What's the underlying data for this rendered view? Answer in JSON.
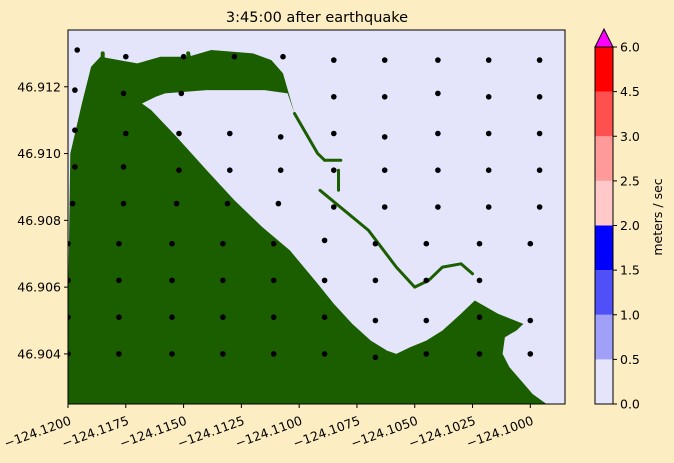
{
  "chart_data": {
    "type": "heatmap",
    "title": "3:45:00 after earthquake",
    "xlabel": "",
    "ylabel": "",
    "xlim": [
      -124.12,
      -124.0985
    ],
    "ylim": [
      46.9025,
      46.9137
    ],
    "x_ticks": [
      -124.12,
      -124.1175,
      -124.115,
      -124.1125,
      -124.11,
      -124.1075,
      -124.105,
      -124.1025,
      -124.1
    ],
    "x_tick_labels": [
      "−124.1200",
      "−124.1175",
      "−124.1150",
      "−124.1125",
      "−124.1100",
      "−124.1075",
      "−124.1050",
      "−124.1025",
      "−124.1000"
    ],
    "y_ticks": [
      46.904,
      46.906,
      46.908,
      46.91,
      46.912
    ],
    "y_tick_labels": [
      "46.904",
      "46.906",
      "46.908",
      "46.910",
      "46.912"
    ],
    "background_color": "#e4e4fb",
    "land_color": "#1a5e00",
    "marker_color": "#000000",
    "grid": false,
    "colorbar": {
      "label": "meters / sec",
      "ticks": [
        0.0,
        0.5,
        1.0,
        1.5,
        2.0,
        2.5,
        3.0,
        4.5,
        6.0
      ],
      "tick_labels": [
        "0.0",
        "0.5",
        "1.0",
        "1.5",
        "2.0",
        "2.5",
        "3.0",
        "4.5",
        "6.0"
      ],
      "colors": [
        "#e4e4fb",
        "#a0a0f8",
        "#5050f8",
        "#0000ff",
        "#ffc9c9",
        "#ff9a9a",
        "#ff5050",
        "#ff0000"
      ],
      "extend_color": "#ff00ff"
    },
    "land_polygon": [
      [
        -124.12,
        46.9025
      ],
      [
        -124.12,
        46.9053
      ],
      [
        -124.1199,
        46.91
      ],
      [
        -124.1194,
        46.9115
      ],
      [
        -124.119,
        46.9126
      ],
      [
        -124.1186,
        46.9129
      ],
      [
        -124.117,
        46.9127
      ],
      [
        -124.116,
        46.9129
      ],
      [
        -124.1148,
        46.9129
      ],
      [
        -124.1138,
        46.9131
      ],
      [
        -124.112,
        46.913
      ],
      [
        -124.1112,
        46.9128
      ],
      [
        -124.1107,
        46.9124
      ],
      [
        -124.1102,
        46.9112
      ],
      [
        -124.1105,
        46.9118
      ],
      [
        -124.1115,
        46.9119
      ],
      [
        -124.114,
        46.9119
      ],
      [
        -124.1158,
        46.9118
      ],
      [
        -124.1162,
        46.9117
      ],
      [
        -124.1168,
        46.9115
      ],
      [
        -124.1164,
        46.9113
      ],
      [
        -124.1153,
        46.9105
      ],
      [
        -124.114,
        46.9095
      ],
      [
        -124.1128,
        46.9086
      ],
      [
        -124.1116,
        46.9078
      ],
      [
        -124.1104,
        46.9071
      ],
      [
        -124.1092,
        46.9061
      ],
      [
        -124.1085,
        46.9055
      ],
      [
        -124.1077,
        46.9049
      ],
      [
        -124.1069,
        46.9044
      ],
      [
        -124.1062,
        46.9041
      ],
      [
        -124.1058,
        46.904
      ],
      [
        -124.1052,
        46.9042
      ],
      [
        -124.1045,
        46.9044
      ],
      [
        -124.1038,
        46.9047
      ],
      [
        -124.103,
        46.9052
      ],
      [
        -124.1024,
        46.9056
      ],
      [
        -124.1014,
        46.9052
      ],
      [
        -124.1003,
        46.9049
      ],
      [
        -124.1006,
        46.9047
      ],
      [
        -124.1011,
        46.9045
      ],
      [
        -124.1012,
        46.904
      ],
      [
        -124.1009,
        46.9036
      ],
      [
        -124.1004,
        46.9032
      ],
      [
        -124.0999,
        46.9028
      ],
      [
        -124.0993,
        46.9025
      ]
    ],
    "channel_lines": [
      [
        [
          -124.1102,
          46.9112
        ],
        [
          -124.1092,
          46.91
        ],
        [
          -124.1089,
          46.9098
        ]
      ],
      [
        [
          -124.1089,
          46.9098
        ],
        [
          -124.1082,
          46.9098
        ]
      ],
      [
        [
          -124.1091,
          46.9089
        ],
        [
          -124.107,
          46.9077
        ],
        [
          -124.1058,
          46.9066
        ],
        [
          -124.105,
          46.906
        ],
        [
          -124.1044,
          46.9062
        ],
        [
          -124.1038,
          46.9066
        ],
        [
          -124.103,
          46.9067
        ],
        [
          -124.1025,
          46.9064
        ]
      ],
      [
        [
          -124.1083,
          46.9095
        ],
        [
          -124.1083,
          46.9089
        ]
      ]
    ],
    "jetty_lines": [
      [
        [
          -124.1185,
          46.913
        ],
        [
          -124.1185,
          46.9124
        ]
      ],
      [
        [
          -124.1148,
          46.913
        ],
        [
          -124.1147,
          46.9126
        ]
      ]
    ],
    "marker_points": [
      [
        -124.1196,
        46.9131
      ],
      [
        -124.1175,
        46.9129
      ],
      [
        -124.115,
        46.9129
      ],
      [
        -124.1128,
        46.9129
      ],
      [
        -124.1107,
        46.9129
      ],
      [
        -124.1085,
        46.9128
      ],
      [
        -124.1063,
        46.9128
      ],
      [
        -124.104,
        46.9128
      ],
      [
        -124.1018,
        46.9128
      ],
      [
        -124.0996,
        46.9128
      ],
      [
        -124.1197,
        46.9119
      ],
      [
        -124.1176,
        46.9118
      ],
      [
        -124.1151,
        46.9118
      ],
      [
        -124.1085,
        46.9117
      ],
      [
        -124.1063,
        46.9117
      ],
      [
        -124.104,
        46.9118
      ],
      [
        -124.1018,
        46.9117
      ],
      [
        -124.0996,
        46.9117
      ],
      [
        -124.1197,
        46.9107
      ],
      [
        -124.1175,
        46.9106
      ],
      [
        -124.1152,
        46.9106
      ],
      [
        -124.113,
        46.9106
      ],
      [
        -124.1108,
        46.9105
      ],
      [
        -124.1085,
        46.9106
      ],
      [
        -124.1063,
        46.9105
      ],
      [
        -124.104,
        46.9106
      ],
      [
        -124.1018,
        46.9106
      ],
      [
        -124.0996,
        46.9106
      ],
      [
        -124.1197,
        46.9096
      ],
      [
        -124.1176,
        46.9096
      ],
      [
        -124.1152,
        46.9095
      ],
      [
        -124.113,
        46.9095
      ],
      [
        -124.1108,
        46.9095
      ],
      [
        -124.1085,
        46.9095
      ],
      [
        -124.1063,
        46.9095
      ],
      [
        -124.104,
        46.9095
      ],
      [
        -124.1018,
        46.9095
      ],
      [
        -124.0996,
        46.9095
      ],
      [
        -124.1198,
        46.9085
      ],
      [
        -124.1176,
        46.9085
      ],
      [
        -124.1153,
        46.9085
      ],
      [
        -124.1131,
        46.9085
      ],
      [
        -124.1109,
        46.9085
      ],
      [
        -124.1085,
        46.9084
      ],
      [
        -124.1063,
        46.9084
      ],
      [
        -124.104,
        46.9084
      ],
      [
        -124.1018,
        46.9084
      ],
      [
        -124.0996,
        46.9084
      ],
      [
        -124.12,
        46.9073
      ],
      [
        -124.1178,
        46.9073
      ],
      [
        -124.1155,
        46.9073
      ],
      [
        -124.1133,
        46.9073
      ],
      [
        -124.1111,
        46.9073
      ],
      [
        -124.1089,
        46.9074
      ],
      [
        -124.1067,
        46.9073
      ],
      [
        -124.1045,
        46.9073
      ],
      [
        -124.1022,
        46.9073
      ],
      [
        -124.1,
        46.9073
      ],
      [
        -124.12,
        46.9062
      ],
      [
        -124.1178,
        46.9062
      ],
      [
        -124.1155,
        46.9062
      ],
      [
        -124.1133,
        46.9062
      ],
      [
        -124.1111,
        46.9062
      ],
      [
        -124.1089,
        46.9062
      ],
      [
        -124.1067,
        46.9062
      ],
      [
        -124.1045,
        46.9062
      ],
      [
        -124.1022,
        46.9062
      ],
      [
        -124.12,
        46.9051
      ],
      [
        -124.1178,
        46.9051
      ],
      [
        -124.1155,
        46.9051
      ],
      [
        -124.1133,
        46.9051
      ],
      [
        -124.1111,
        46.9051
      ],
      [
        -124.1089,
        46.9051
      ],
      [
        -124.1067,
        46.905
      ],
      [
        -124.1045,
        46.905
      ],
      [
        -124.1022,
        46.9051
      ],
      [
        -124.1,
        46.905
      ],
      [
        -124.12,
        46.904
      ],
      [
        -124.1178,
        46.904
      ],
      [
        -124.1155,
        46.904
      ],
      [
        -124.1133,
        46.904
      ],
      [
        -124.1111,
        46.904
      ],
      [
        -124.1089,
        46.904
      ],
      [
        -124.1067,
        46.9039
      ],
      [
        -124.1045,
        46.904
      ],
      [
        -124.1022,
        46.904
      ],
      [
        -124.1,
        46.904
      ]
    ]
  }
}
